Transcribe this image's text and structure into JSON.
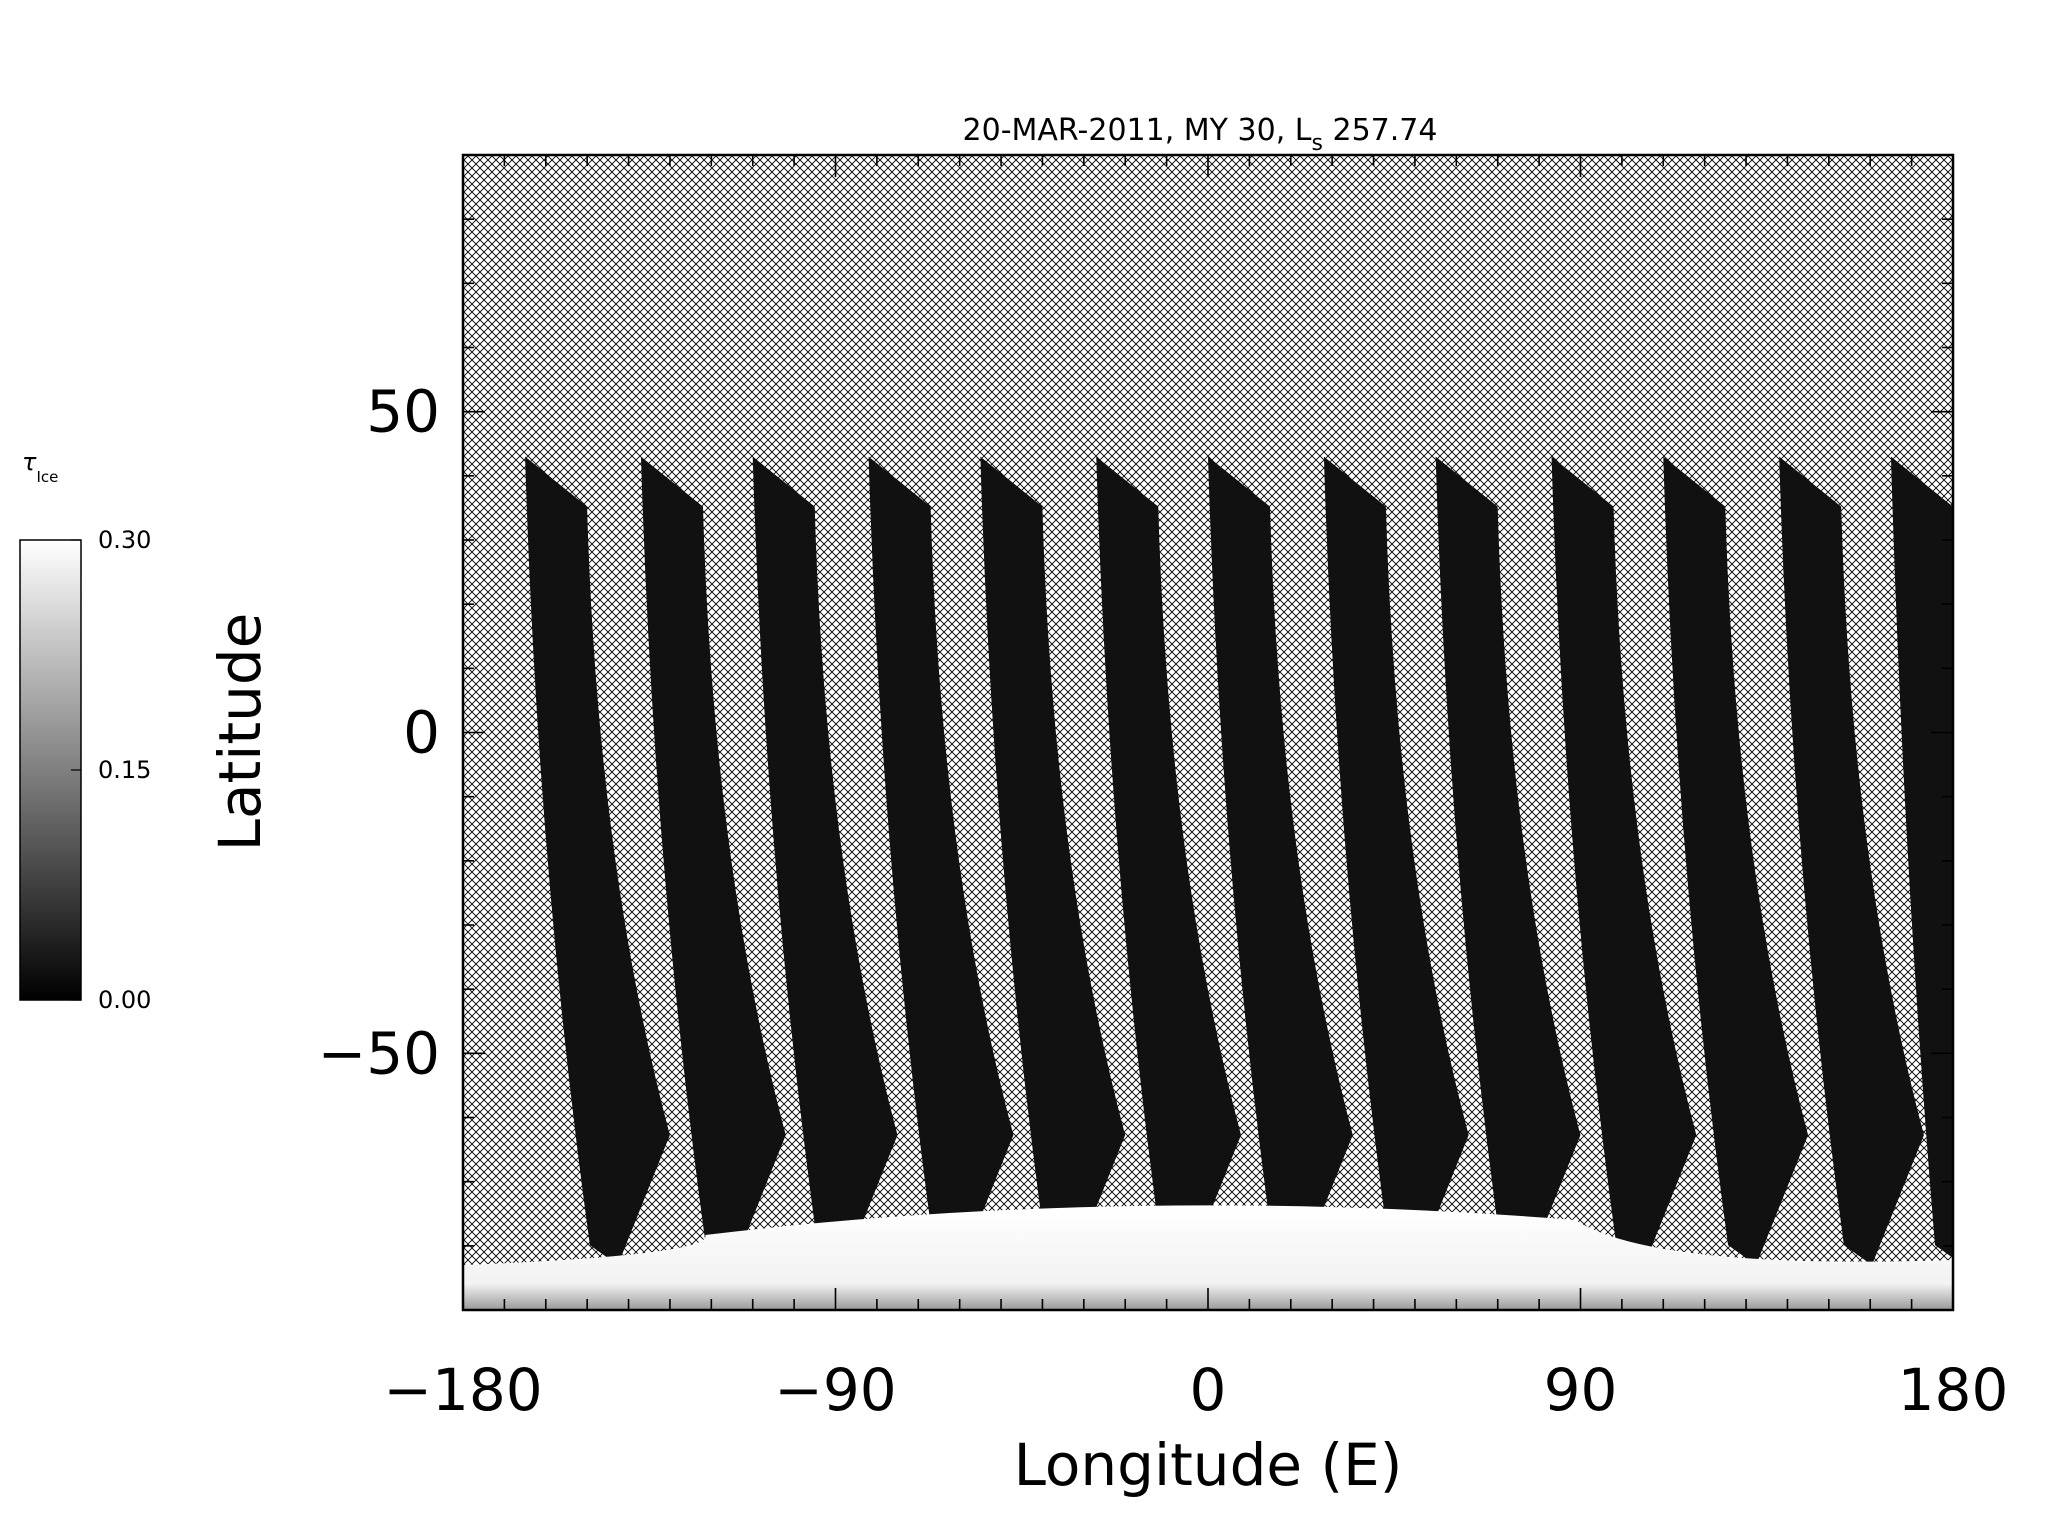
{
  "chart_data": {
    "type": "heatmap",
    "title": "20-MAR-2011, MY 30,  L",
    "title_sub": "s",
    "title_value": " 257.74",
    "xlabel": "Longitude (E)",
    "ylabel": "Latitude",
    "xlim": [
      -180,
      180
    ],
    "ylim": [
      -90,
      90
    ],
    "x_ticks": [
      -180,
      -90,
      0,
      90,
      180
    ],
    "x_tick_labels": [
      "−180",
      "−90",
      "0",
      "90",
      "180"
    ],
    "y_ticks": [
      -50,
      0,
      50
    ],
    "y_tick_labels": [
      "−50",
      "0",
      "50"
    ],
    "x_minor_step": 10,
    "y_minor_step": 10,
    "no_data_pattern": "cross-hatch",
    "colorbar": {
      "label": "τ",
      "label_sub": "Ice",
      "min": 0.0,
      "max": 0.3,
      "ticks": [
        0.0,
        0.15,
        0.3
      ],
      "tick_labels": [
        "0.00",
        "0.15",
        "0.30"
      ],
      "colormap": "grayscale",
      "low_color": "#000000",
      "high_color": "#ffffff"
    },
    "swaths": [
      {
        "lon_top": -165,
        "lat_top": 43,
        "lon_bottom": -145,
        "lat_bottom": -83
      },
      {
        "lon_top": -137,
        "lat_top": 43,
        "lon_bottom": -117,
        "lat_bottom": -83
      },
      {
        "lon_top": -110,
        "lat_top": 43,
        "lon_bottom": -90,
        "lat_bottom": -83
      },
      {
        "lon_top": -82,
        "lat_top": 43,
        "lon_bottom": -62,
        "lat_bottom": -83
      },
      {
        "lon_top": -55,
        "lat_top": 43,
        "lon_bottom": -35,
        "lat_bottom": -83
      },
      {
        "lon_top": -27,
        "lat_top": 43,
        "lon_bottom": -7,
        "lat_bottom": -83
      },
      {
        "lon_top": 0,
        "lat_top": 43,
        "lon_bottom": 20,
        "lat_bottom": -83
      },
      {
        "lon_top": 28,
        "lat_top": 43,
        "lon_bottom": 48,
        "lat_bottom": -83
      },
      {
        "lon_top": 55,
        "lat_top": 43,
        "lon_bottom": 75,
        "lat_bottom": -83
      },
      {
        "lon_top": 83,
        "lat_top": 43,
        "lon_bottom": 103,
        "lat_bottom": -83
      },
      {
        "lon_top": 110,
        "lat_top": 43,
        "lon_bottom": 130,
        "lat_bottom": -83
      },
      {
        "lon_top": 138,
        "lat_top": 43,
        "lon_bottom": 158,
        "lat_bottom": -83
      },
      {
        "lon_top": 165,
        "lat_top": 43,
        "lon_bottom": 180,
        "lat_bottom": -83
      }
    ],
    "swath_value": 0.02,
    "polar_cap": {
      "lat_edge": -72,
      "lon_center": -20,
      "value": 0.3
    }
  }
}
